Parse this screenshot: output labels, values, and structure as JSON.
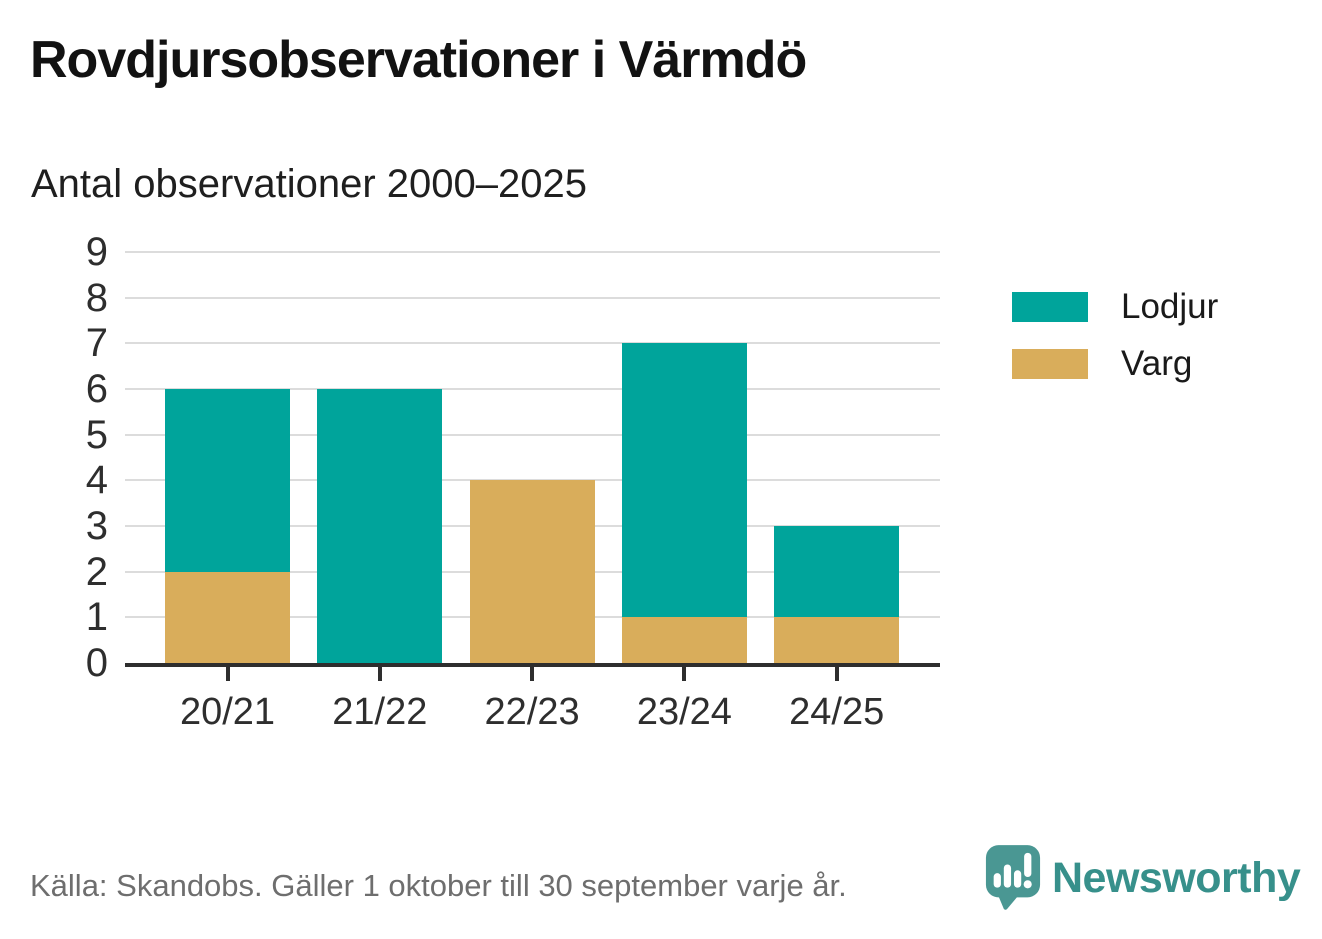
{
  "header": {
    "title": "Rovdjursobservationer i Värmdö",
    "subtitle": "Antal observationer 2000–2025"
  },
  "chart_data": {
    "type": "bar",
    "stacked": true,
    "title": "Rovdjursobservationer i Värmdö",
    "subtitle": "Antal observationer 2000–2025",
    "categories": [
      "20/21",
      "21/22",
      "22/23",
      "23/24",
      "24/25"
    ],
    "series": [
      {
        "name": "Varg",
        "color": "#d9ad5b",
        "values": [
          2,
          0,
          4,
          1,
          1
        ]
      },
      {
        "name": "Lodjur",
        "color": "#00a49b",
        "values": [
          4,
          6,
          0,
          6,
          2
        ]
      }
    ],
    "totals": [
      6,
      6,
      4,
      7,
      3
    ],
    "xlabel": "",
    "ylabel": "",
    "ylim": [
      0,
      9
    ],
    "yticks": [
      0,
      1,
      2,
      3,
      4,
      5,
      6,
      7,
      8,
      9
    ],
    "grid": true,
    "legend_position": "right",
    "legend": [
      {
        "label": "Lodjur",
        "color": "#00a49b"
      },
      {
        "label": "Varg",
        "color": "#d9ad5b"
      }
    ]
  },
  "footer": {
    "source": "Källa: Skandobs. Gäller 1 oktober till 30 september varje år.",
    "brand": "Newsworthy"
  },
  "colors": {
    "lodjur_teal": "#00a49b",
    "varg_gold": "#d9ad5b",
    "gridline": "#dcdcdc",
    "axis": "#2e2e2e",
    "source_gray": "#6e6e6e",
    "brand_teal": "#37908b"
  }
}
